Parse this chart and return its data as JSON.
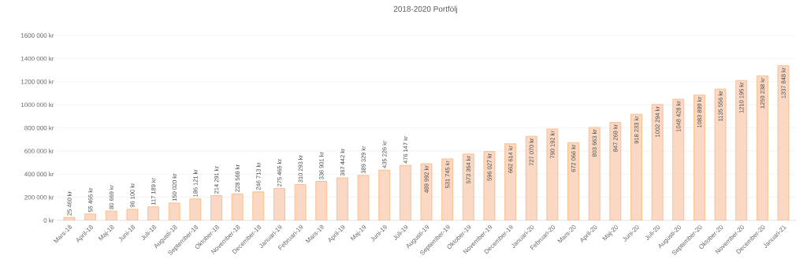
{
  "chart_data": {
    "type": "bar",
    "title": "2018-2020 Portfölj",
    "categories": [
      "Mars-18",
      "April-18",
      "Maj-18",
      "Juni-18",
      "Juli-18",
      "Augusti-18",
      "September-18",
      "Oktober-18",
      "November-18",
      "December-18",
      "Januari-19",
      "Februari-19",
      "Mars-19",
      "April-19",
      "Maj-19",
      "Juni-19",
      "Juli-19",
      "Augusti-19",
      "September-19",
      "Oktober-19",
      "November-19",
      "December-19",
      "Januari-20",
      "Februari-20",
      "Mars-20",
      "April-20",
      "Maj-20",
      "Juni-20",
      "Juli-20",
      "Augusti-20",
      "September-20",
      "Oktober-20",
      "November-20",
      "December-20",
      "Januari-21"
    ],
    "values": [
      25460,
      55465,
      80669,
      96100,
      117189,
      150020,
      186121,
      214291,
      228568,
      246713,
      275465,
      310293,
      336901,
      367442,
      389329,
      435226,
      476147,
      489992,
      531745,
      573364,
      596027,
      662614,
      727070,
      790192,
      672066,
      803663,
      847269,
      918233,
      1002294,
      1048428,
      1083899,
      1135556,
      1210195,
      1250238,
      1337848
    ],
    "value_labels": [
      "25 460 kr",
      "55 465 kr",
      "80 669 kr",
      "96 100 kr",
      "117 189 kr",
      "150 020 kr",
      "186 121 kr",
      "214 291 kr",
      "228 568 kr",
      "246 713 kr",
      "275 465 kr",
      "310 293 kr",
      "336 901 kr",
      "367 442 kr",
      "389 329 kr",
      "435 226 kr",
      "476 147 kr",
      "489 992 kr",
      "531 745 kr",
      "573 364 kr",
      "596 027 kr",
      "662 614 kr",
      "727 070 kr",
      "790 192 kr",
      "672 066 kr",
      "803 663 kr",
      "847 269 kr",
      "918 233 kr",
      "1002 294 kr",
      "1048 428 kr",
      "1083 899 kr",
      "1135 556 kr",
      "1210 195 kr",
      "1250 238 kr",
      "1337 848 kr"
    ],
    "color": "#fbd8c4",
    "ylim": [
      0,
      1600000
    ],
    "yticks": [
      {
        "value": 0,
        "label": "0 kr"
      },
      {
        "value": 200000,
        "label": "200 000 kr"
      },
      {
        "value": 400000,
        "label": "400 000 kr"
      },
      {
        "value": 600000,
        "label": "600 000 kr"
      },
      {
        "value": 800000,
        "label": "800 000 kr"
      },
      {
        "value": 1000000,
        "label": "1000 000 kr"
      },
      {
        "value": 1200000,
        "label": "1200 000 kr"
      },
      {
        "value": 1400000,
        "label": "1400 000 kr"
      },
      {
        "value": 1600000,
        "label": "1600 000 kr"
      }
    ],
    "grid": "y"
  }
}
